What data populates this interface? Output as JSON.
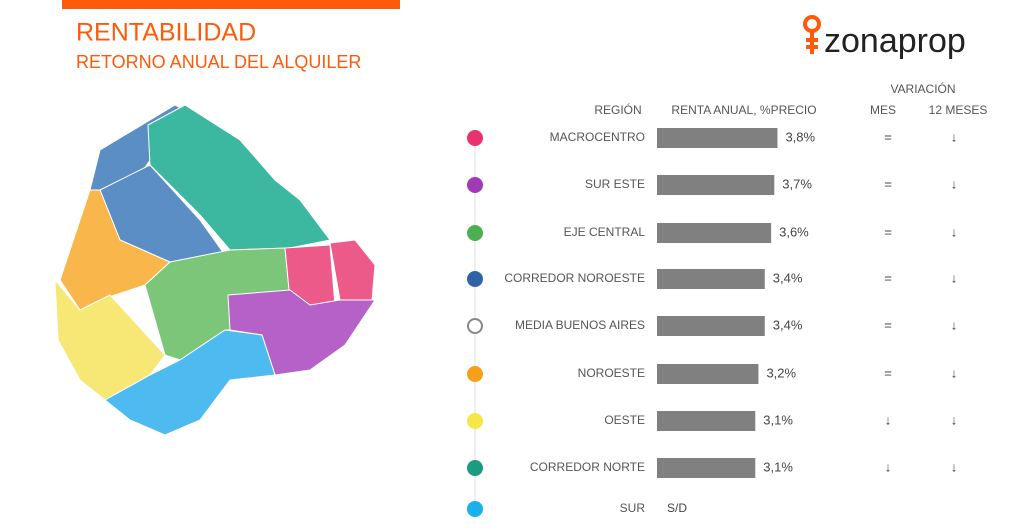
{
  "header": {
    "title": "RENTABILIDAD",
    "subtitle": "RETORNO ANUAL DEL ALQUILER",
    "logo": "zonaprop"
  },
  "table": {
    "group_header": "VARIACIÓN",
    "columns": [
      "REGIÓN",
      "RENTA ANUAL, %PRECIO",
      "MES",
      "12 MESES"
    ],
    "bar_color": "#808080",
    "rows": [
      {
        "name": "MACROCENTRO",
        "color": "#e8336e",
        "value": 3.8,
        "value_label": "3,8%",
        "mes": "=",
        "doce_meses": "↓"
      },
      {
        "name": "SUR ESTE",
        "color": "#a23ab8",
        "value": 3.7,
        "value_label": "3,7%",
        "mes": "=",
        "doce_meses": "↓"
      },
      {
        "name": "EJE CENTRAL",
        "color": "#4caf50",
        "value": 3.6,
        "value_label": "3,6%",
        "mes": "=",
        "doce_meses": "↓"
      },
      {
        "name": "CORREDOR NOROESTE",
        "color": "#2f63a8",
        "value": 3.4,
        "value_label": "3,4%",
        "mes": "=",
        "doce_meses": "↓"
      },
      {
        "name": "MEDIA BUENOS AIRES",
        "color": "#ffffff",
        "value": 3.4,
        "value_label": "3,4%",
        "mes": "=",
        "doce_meses": "↓"
      },
      {
        "name": "NOROESTE",
        "color": "#f5a01a",
        "value": 3.2,
        "value_label": "3,2%",
        "mes": "=",
        "doce_meses": "↓"
      },
      {
        "name": "OESTE",
        "color": "#f7e64a",
        "value": 3.1,
        "value_label": "3,1%",
        "mes": "↓",
        "doce_meses": "↓"
      },
      {
        "name": "CORREDOR NORTE",
        "color": "#1c9b80",
        "value": 3.1,
        "value_label": "3,1%",
        "mes": "↓",
        "doce_meses": "↓"
      },
      {
        "name": "SUR",
        "color": "#1ab0f0",
        "value": null,
        "value_label": "S/D",
        "mes": null,
        "doce_meses": null
      }
    ]
  }
}
